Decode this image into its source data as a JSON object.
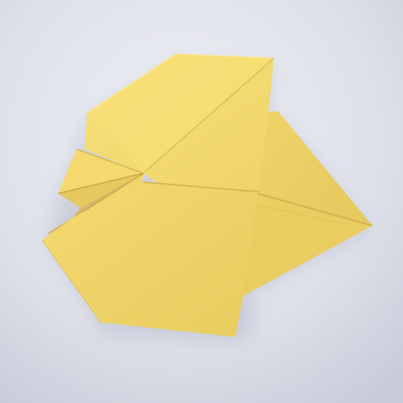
{
  "scene": {
    "colors": {
      "background_light": "#e7e8ef",
      "background_mid": "#d9dbe6",
      "background_dark": "#c9ccda",
      "paper_main": "#f2d86a",
      "paper_light": "#f6df76",
      "paper_mid": "#ead064",
      "paper_shadow_side": "#e1c35a",
      "paper_deep_shadow": "#cfae45",
      "crease_line": "#d6b752",
      "cast_shadow": "#9fa3b7"
    }
  }
}
